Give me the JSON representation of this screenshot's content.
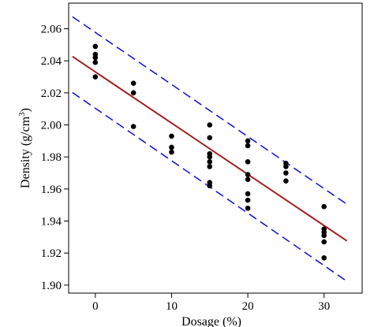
{
  "chart_data": {
    "type": "scatter",
    "title": "",
    "xlabel": "Dosage (%)",
    "ylabel_main": "Density  (g/cm",
    "ylabel_sup": "3",
    "ylabel_close": ")",
    "xlim": [
      -3.5,
      35
    ],
    "ylim": [
      1.895,
      2.076
    ],
    "xticks": [
      0,
      10,
      20,
      30
    ],
    "yticks": [
      1.9,
      1.92,
      1.94,
      1.96,
      1.98,
      2.0,
      2.02,
      2.04,
      2.06
    ],
    "xtick_labels": [
      "0",
      "10",
      "20",
      "30"
    ],
    "ytick_labels": [
      "1.90",
      "1.92",
      "1.94",
      "1.96",
      "1.98",
      "2.00",
      "2.02",
      "2.04",
      "2.06"
    ],
    "grid": false,
    "legend": "none",
    "series": [
      {
        "kind": "points",
        "color": "#000000",
        "points": [
          [
            0,
            2.049
          ],
          [
            0,
            2.044
          ],
          [
            0,
            2.042
          ],
          [
            0,
            2.039
          ],
          [
            0,
            2.03
          ],
          [
            5,
            2.026
          ],
          [
            5,
            2.02
          ],
          [
            5,
            1.999
          ],
          [
            10,
            1.993
          ],
          [
            10,
            1.986
          ],
          [
            10,
            1.983
          ],
          [
            15,
            2.0
          ],
          [
            15,
            1.992
          ],
          [
            15,
            1.982
          ],
          [
            15,
            1.98
          ],
          [
            15,
            1.977
          ],
          [
            15,
            1.974
          ],
          [
            15,
            1.964
          ],
          [
            15,
            1.962
          ],
          [
            20,
            1.99
          ],
          [
            20,
            1.987
          ],
          [
            20,
            1.977
          ],
          [
            20,
            1.969
          ],
          [
            20,
            1.966
          ],
          [
            20,
            1.957
          ],
          [
            20,
            1.953
          ],
          [
            20,
            1.948
          ],
          [
            25,
            1.976
          ],
          [
            25,
            1.974
          ],
          [
            25,
            1.97
          ],
          [
            25,
            1.965
          ],
          [
            30,
            1.949
          ],
          [
            30,
            1.935
          ],
          [
            30,
            1.933
          ],
          [
            30,
            1.931
          ],
          [
            30,
            1.927
          ],
          [
            30,
            1.917
          ]
        ]
      },
      {
        "kind": "fit-line",
        "color": "#a31f1f",
        "dash": "solid",
        "x": [
          -3,
          33
        ],
        "y": [
          2.0427,
          1.9276
        ]
      },
      {
        "kind": "upper-band",
        "color": "#1a1ad6",
        "dash": "dashed",
        "x": [
          -3,
          33
        ],
        "y": [
          2.0675,
          1.9505
        ]
      },
      {
        "kind": "lower-band",
        "color": "#1a1ad6",
        "dash": "dashed",
        "x": [
          -3,
          33
        ],
        "y": [
          2.0202,
          1.9024
        ]
      }
    ]
  }
}
